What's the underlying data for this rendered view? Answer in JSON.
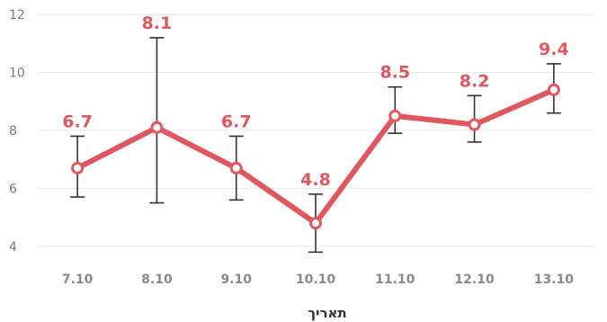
{
  "chart_data": {
    "type": "line",
    "categories": [
      "7.10",
      "8.10",
      "9.10",
      "10.10",
      "11.10",
      "12.10",
      "13.10"
    ],
    "values": [
      6.7,
      8.1,
      6.7,
      4.8,
      8.5,
      8.2,
      9.4
    ],
    "data_labels": [
      "6.7",
      "8.1",
      "6.7",
      "4.8",
      "8.5",
      "8.2",
      "9.4"
    ],
    "error_low": [
      5.7,
      5.5,
      5.6,
      3.8,
      7.9,
      7.6,
      8.6
    ],
    "error_high": [
      7.8,
      11.2,
      7.8,
      5.8,
      9.5,
      9.2,
      10.3
    ],
    "ylim": [
      3.5,
      12.5
    ],
    "yticks": [
      4,
      6,
      8,
      10,
      12
    ],
    "ytick_labels": [
      "4",
      "6",
      "8",
      "10",
      "12"
    ],
    "xlabel": "תאריך",
    "ylabel": "",
    "title": "",
    "grid": true,
    "legend": "none",
    "colors": {
      "series": "#e0585e",
      "marker_fill": "#ffffff",
      "error_bar": "#333333",
      "grid": "#e8e8e8"
    }
  }
}
